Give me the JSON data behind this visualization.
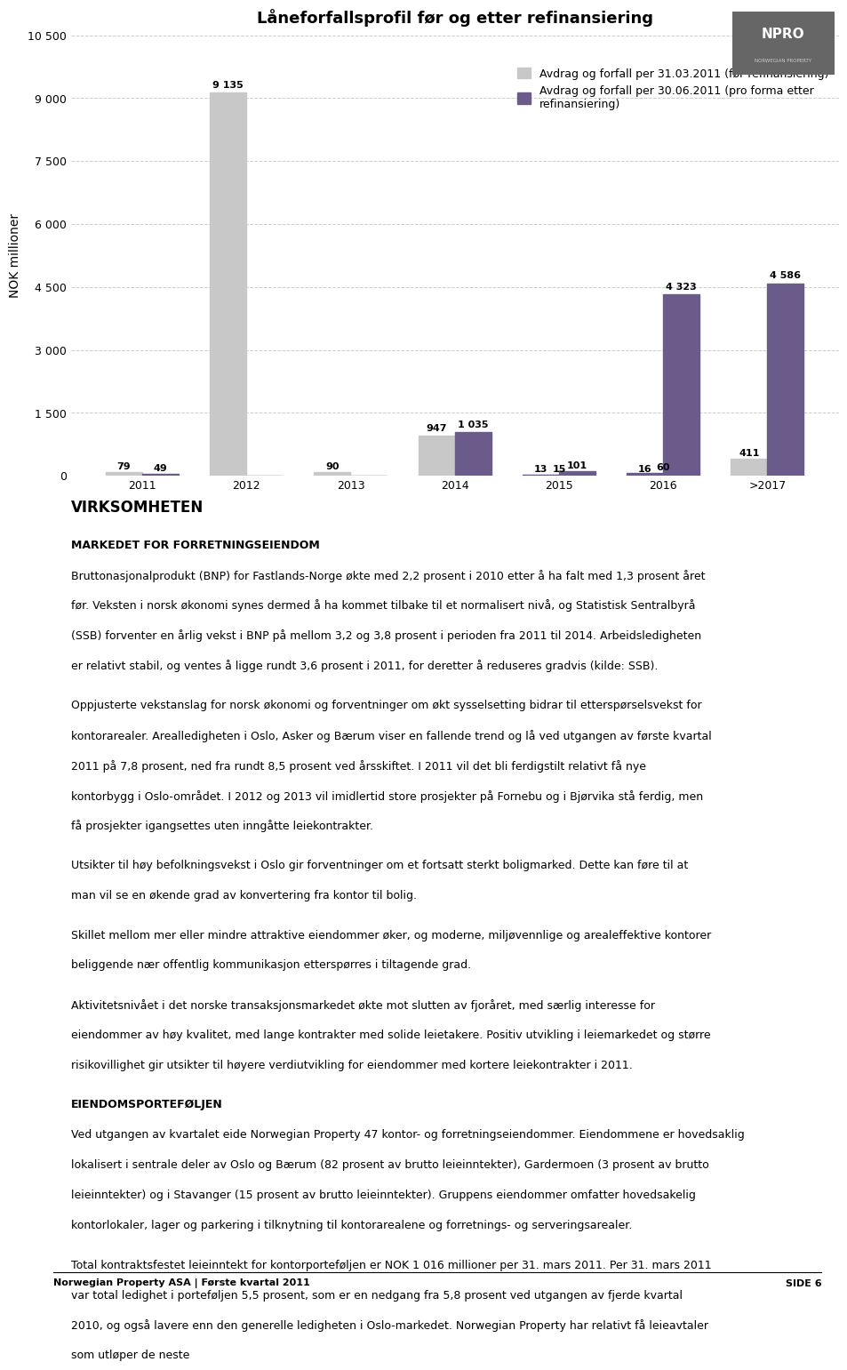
{
  "title": "Låneforfallsprofil før og etter refinansiering",
  "ylabel": "NOK millioner",
  "categories": [
    "2011",
    "2012",
    "2013",
    "2014",
    "2015",
    "2016",
    ">2017"
  ],
  "series1_label": "Avdrag og forfall per 31.03.2011 (før refinansiering)",
  "series2_label": "Avdrag og forfall per 30.06.2011 (pro forma etter\nrefinansiering)",
  "series1_values": [
    79,
    9135,
    90,
    947,
    13,
    16,
    411
  ],
  "series2_values": [
    49,
    0,
    0,
    1035,
    101,
    4323,
    4586
  ],
  "series2_extra": [
    0,
    0,
    0,
    0,
    15,
    60,
    0
  ],
  "series1_color": "#c8c8c8",
  "series2_color": "#6b5b8b",
  "bar_labels_s1": [
    "79",
    "9 135",
    "90",
    "947",
    "13",
    "16",
    "411"
  ],
  "bar_labels_s2": [
    "49",
    "",
    "",
    "1 035",
    "101",
    "4 323",
    "4 586"
  ],
  "bar_labels_extra": [
    "",
    "",
    "",
    "",
    "15",
    "60",
    ""
  ],
  "ylim": [
    0,
    10500
  ],
  "yticks": [
    0,
    1500,
    3000,
    4500,
    6000,
    7500,
    9000,
    10500
  ],
  "ytick_labels": [
    "0",
    "1 500",
    "3 000",
    "4 500",
    "6 000",
    "7 500",
    "9 000",
    "10 500"
  ],
  "background_color": "#ffffff",
  "grid_color": "#cccccc",
  "title_fontsize": 13,
  "axis_label_fontsize": 10,
  "tick_fontsize": 9,
  "bar_label_fontsize": 8,
  "legend_fontsize": 9,
  "body_text": [
    {
      "heading": "VIRKSOMHETEN",
      "bold": true,
      "size": 12,
      "space_after": true
    },
    {
      "heading": "MARKEDET FOR FORRETNINGSEIENDOM",
      "bold": true,
      "size": 9,
      "space_after": false
    },
    {
      "text": "Bruttonasjonalprodukt (BNP) for Fastlands-Norge økte med 2,2 prosent i 2010 etter å ha falt med 1,3 prosent året før. Veksten i norsk økonomi synes dermed å ha kommet tilbake til et normalisert nivå, og Statistisk Sentralbyrå (SSB) forventer en årlig vekst i BNP på mellom 3,2 og 3,8 prosent i perioden fra 2011 til 2014. Arbeidsledigheten er relativt stabil, og ventes å ligge rundt 3,6 prosent i 2011, for deretter å reduseres gradvis (kilde: SSB).",
      "size": 9,
      "space_after": true
    },
    {
      "text": "Oppjusterte vekstanslag for norsk økonomi og forventninger om økt sysselsetting bidrar til etterspørselsvekst for kontorarealer. Arealledigheten i Oslo, Asker og Bærum viser en fallende trend og lå ved utgangen av første kvartal 2011 på 7,8 prosent, ned fra rundt 8,5 prosent ved årsskiftet. I 2011 vil det bli ferdigstilt relativt få nye kontorbygg i Oslo-området. I 2012 og 2013 vil imidlertid store prosjekter på Fornebu og i Bjørvika stå ferdig, men få prosjekter igangsettes uten inngåtte leiekontrakter.",
      "size": 9,
      "space_after": true
    },
    {
      "text": "Utsikter til høy befolkningsvekst i Oslo gir forventninger om et fortsatt sterkt boligmarked. Dette kan føre til at man vil se en økende grad av konvertering fra kontor til bolig.",
      "size": 9,
      "space_after": true
    },
    {
      "text": "Skillet mellom mer eller mindre attraktive eiendommer øker, og moderne, miljøvennlige og arealeffektive kontorer beliggende nær offentlig kommunikasjon etterspørres i tiltagende grad.",
      "size": 9,
      "space_after": true
    },
    {
      "text": "Aktivitetsnivået i det norske transaksjonsmarkedet økte mot slutten av fjoråret, med særlig interesse for eiendommer av høy kvalitet, med lange kontrakter med solide leietakere. Positiv utvikling i leiemarkedet og større risikovillighet gir utsikter til høyere verdiutvikling for eiendommer med kortere leiekontrakter i 2011.",
      "size": 9,
      "space_after": true
    },
    {
      "heading": "EIENDOMSPORTEFØLJEN",
      "bold": true,
      "size": 9,
      "space_after": false
    },
    {
      "text": "Ved utgangen av kvartalet eide Norwegian Property 47 kontor- og forretningseiendommer. Eiendommene er hovedsaklig lokalisert i sentrale deler av Oslo og Bærum (82 prosent av brutto leieinntekter), Gardermoen (3 prosent av brutto leieinntekter) og i Stavanger (15 prosent av brutto leieinntekter). Gruppens eiendommer omfatter hovedsakelig kontorlokaler, lager og parkering i tilknytning til kontorarealene og forretnings- og serveringsarealer.",
      "size": 9,
      "space_after": true
    },
    {
      "text": "Total kontraktsfestet leieinntekt for kontorporteføljen er NOK 1 016 millioner per 31. mars 2011. Per 31. mars 2011 var total ledighet i porteføljen 5,5 prosent, som er en nedgang fra 5,8 prosent ved utgangen av fjerde kvartal 2010, og også lavere enn den generelle ledigheten i Oslo-markedet. Norwegian Property har relativt få leieavtaler som utløper de neste",
      "size": 9,
      "space_after": false
    }
  ],
  "footer_left": "Norwegian Property ASA | Første kvartal 2011",
  "footer_right": "SIDE 6",
  "logo_bg": "#6b6b6b"
}
